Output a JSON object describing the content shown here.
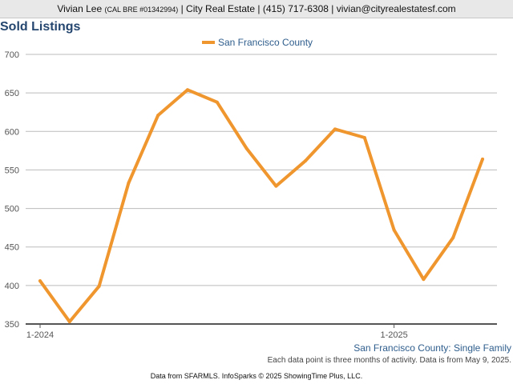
{
  "header": {
    "agent_name": "Vivian Lee",
    "license": "(CAL BRE #01342994)",
    "company": "City Real Estate",
    "phone": "(415) 717-6308",
    "email": "vivian@cityrealestatesf.com",
    "separator": "|"
  },
  "chart_title": "Sold Listings",
  "subtitle": "San Francisco County: Single Family",
  "note": "Each data point is three months of activity. Data is from May 9, 2025.",
  "footer": "Data from SFARMLS. InfoSparks © 2025 ShowingTime Plus, LLC.",
  "colors": {
    "series": "#f0962e",
    "title": "#24466f",
    "grid": "#bbbbbb",
    "header_bg": "#e8e8e8"
  },
  "chart_data": {
    "type": "line",
    "title": "Sold Listings",
    "xlabel": "",
    "ylabel": "",
    "ylim": [
      350,
      700
    ],
    "yticks": [
      350,
      400,
      450,
      500,
      550,
      600,
      650,
      700
    ],
    "x_tick_labels": [
      "1-2024",
      "1-2025"
    ],
    "x_tick_index": [
      0,
      12
    ],
    "legend_position": "top",
    "grid": true,
    "series": [
      {
        "name": "San Francisco County",
        "values": [
          406,
          353,
          399,
          533,
          621,
          654,
          638,
          578,
          529,
          562,
          603,
          592,
          472,
          408,
          462,
          564
        ]
      }
    ]
  }
}
